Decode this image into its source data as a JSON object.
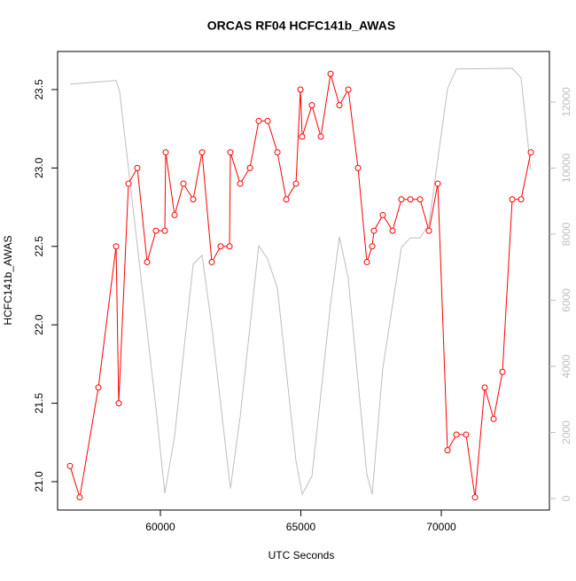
{
  "chart_data": {
    "type": "line",
    "title": "ORCAS RF04 HCFC141b_AWAS",
    "xlabel": "UTC Seconds",
    "ylabel": "HCFC141b_AWAS",
    "xlim": [
      56341,
      73849
    ],
    "xticks": [
      60000,
      65000,
      70000
    ],
    "ylim": [
      20.819,
      23.743
    ],
    "yticks": [
      {
        "value": 21,
        "label": "21.0"
      },
      21.5,
      {
        "value": 22,
        "label": "22.0"
      },
      22.5,
      {
        "value": 23,
        "label": "23.0"
      },
      23.5
    ],
    "y2lim": [
      -349,
      13530
    ],
    "y2ticks": [
      0,
      2000,
      4000,
      6000,
      8000,
      10000,
      12000
    ],
    "y2color": "#bebebe",
    "series": [
      {
        "color": "#bebebe",
        "axis": "y2",
        "markers": false,
        "x": [
          56782,
          58423,
          58549,
          58864,
          59842,
          60158,
          60505,
          61167,
          61483,
          61830,
          62492,
          62840,
          63502,
          63818,
          64165,
          64827,
          65048,
          65395,
          66058,
          66373,
          66689,
          67351,
          67540,
          67919,
          68581,
          68897,
          69244,
          69560,
          69875,
          70222,
          70537,
          72525,
          72840,
          73187
        ],
        "values": [
          12540,
          12650,
          12320,
          9990,
          2740,
          160,
          1880,
          7090,
          7360,
          5210,
          300,
          2470,
          7650,
          7250,
          6360,
          1130,
          130,
          670,
          5880,
          7920,
          6660,
          720,
          130,
          3950,
          7600,
          7890,
          7890,
          8300,
          10260,
          12400,
          13000,
          13020,
          12730,
          9930
        ]
      },
      {
        "color": "#ff0000",
        "axis": "y",
        "markers": true,
        "x": [
          56782,
          57129,
          57792,
          58423,
          58517,
          58864,
          59180,
          59527,
          59842,
          60158,
          60189,
          60505,
          60820,
          61167,
          61483,
          61830,
          62145,
          62461,
          62492,
          62840,
          63187,
          63502,
          63818,
          64165,
          64480,
          64827,
          64985,
          65048,
          65395,
          65711,
          66058,
          66373,
          66689,
          67036,
          67351,
          67540,
          67603,
          67919,
          68266,
          68581,
          68897,
          69244,
          69560,
          69875,
          70222,
          70537,
          70884,
          71200,
          71547,
          71862,
          72178,
          72525,
          72840,
          73187
        ],
        "values": [
          21.1,
          20.9,
          21.6,
          22.5,
          21.5,
          22.9,
          23.0,
          22.4,
          22.6,
          22.6,
          23.1,
          22.7,
          22.9,
          22.8,
          23.1,
          22.4,
          22.5,
          22.5,
          23.1,
          22.9,
          23.0,
          23.3,
          23.3,
          23.1,
          22.8,
          22.9,
          23.5,
          23.2,
          23.4,
          23.2,
          23.6,
          23.4,
          23.5,
          23.0,
          22.4,
          22.5,
          22.6,
          22.7,
          22.6,
          22.8,
          22.8,
          22.8,
          22.6,
          22.9,
          21.2,
          21.3,
          21.3,
          20.9,
          21.6,
          21.4,
          21.7,
          22.8,
          22.8,
          23.1
        ]
      }
    ]
  }
}
